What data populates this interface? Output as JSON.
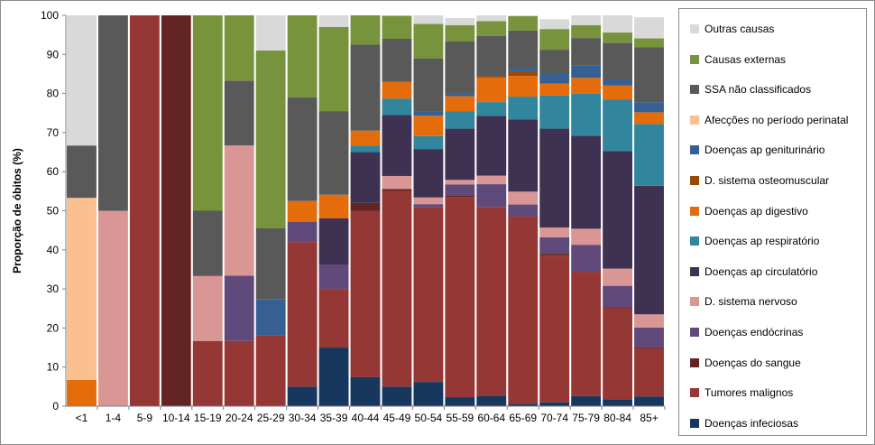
{
  "chart_data": {
    "type": "bar",
    "stacked": true,
    "ylabel": "Proporção de óbitos (%)",
    "ylim": [
      0,
      100
    ],
    "yticks": [
      0,
      10,
      20,
      30,
      40,
      50,
      60,
      70,
      80,
      90,
      100
    ],
    "categories": [
      "<1",
      "1-4",
      "5-9",
      "10-14",
      "15-19",
      "20-24",
      "25-29",
      "30-34",
      "35-39",
      "40-44",
      "45-49",
      "50-54",
      "55-59",
      "60-64",
      "65-69",
      "70-74",
      "75-79",
      "80-84",
      "85+"
    ],
    "series": [
      {
        "name": "Doenças infeciosas",
        "color": "#17375e",
        "values": [
          0,
          0,
          0,
          0,
          0,
          0,
          0,
          5,
          15,
          7.4,
          5,
          6.2,
          2.3,
          2.7,
          0.6,
          1,
          2.6,
          1.8,
          2.5
        ]
      },
      {
        "name": "Tumores malignos",
        "color": "#953735",
        "values": [
          0,
          0,
          100,
          0,
          16.7,
          16.7,
          18.2,
          37,
          15,
          42.6,
          50,
          44.8,
          51.2,
          48.3,
          48,
          37.5,
          31.8,
          23.4,
          12.3
        ]
      },
      {
        "name": "Doenças do sangue",
        "color": "#632523",
        "values": [
          0,
          0,
          0,
          100,
          0,
          0,
          0,
          0,
          0,
          2,
          0.6,
          0,
          0.4,
          0,
          0,
          0.5,
          0,
          0.2,
          0.3
        ]
      },
      {
        "name": "Doenças endócrinas",
        "color": "#604a7b",
        "values": [
          0,
          0,
          0,
          0,
          0,
          16.7,
          0,
          5.2,
          6.1,
          0,
          0,
          0.7,
          2.8,
          5.8,
          3,
          4.2,
          6.9,
          5.4,
          5
        ]
      },
      {
        "name": "D. sistema nervoso",
        "color": "#d99694",
        "values": [
          0,
          50,
          0,
          0,
          16.6,
          33.3,
          0,
          0,
          0,
          0,
          3.3,
          1.7,
          1.2,
          2.2,
          3.3,
          2.5,
          4.1,
          4.4,
          3.4
        ]
      },
      {
        "name": "Doenças ap circulatório",
        "color": "#3f3151",
        "values": [
          0,
          0,
          0,
          0,
          0,
          0,
          0,
          0,
          12,
          13,
          15.6,
          12.4,
          13.1,
          15.3,
          18.5,
          25.3,
          23.8,
          30.1,
          32.9
        ]
      },
      {
        "name": "Doenças ap respiratório",
        "color": "#31859c",
        "values": [
          0,
          0,
          0,
          0,
          0,
          0,
          0,
          0,
          0,
          1.7,
          4.2,
          3.3,
          4.5,
          3.5,
          5.8,
          8.5,
          10.8,
          13.2,
          15.8
        ]
      },
      {
        "name": "Doenças ap digestivo",
        "color": "#e46c0a",
        "values": [
          6.7,
          0,
          0,
          0,
          0,
          0,
          0,
          5.3,
          6,
          3.8,
          4.3,
          5.2,
          3.8,
          6.3,
          5.3,
          3,
          4,
          3.6,
          3
        ]
      },
      {
        "name": "D. sistema osteomuscular",
        "color": "#984807",
        "values": [
          0,
          0,
          0,
          0,
          0,
          0,
          0,
          0,
          0,
          0,
          0,
          0,
          0,
          0.3,
          1.2,
          0,
          0,
          0,
          0
        ]
      },
      {
        "name": "Doenças ap geniturinário",
        "color": "#366092",
        "values": [
          0,
          0,
          0,
          0,
          0,
          0,
          9.1,
          0,
          0,
          0,
          0,
          1.2,
          0.7,
          0,
          0.8,
          2.6,
          3.1,
          1.5,
          2.6
        ]
      },
      {
        "name": "Afecções no período perinatal",
        "color": "#fac090",
        "values": [
          46.6,
          0,
          0,
          0,
          0,
          0,
          0,
          0,
          0,
          0,
          0,
          0,
          0,
          0,
          0,
          0,
          0,
          0,
          0
        ]
      },
      {
        "name": "SSA não classificados",
        "color": "#595959",
        "values": [
          13.4,
          50,
          0,
          0,
          16.7,
          16.6,
          18.2,
          26.5,
          21.4,
          22,
          11,
          13.5,
          13.3,
          10.3,
          9.6,
          6.1,
          7.1,
          9.4,
          14
        ]
      },
      {
        "name": "Causas externas",
        "color": "#77933c",
        "values": [
          0,
          0,
          0,
          0,
          50,
          16.7,
          45.5,
          21,
          21.5,
          7.5,
          5.9,
          8.8,
          4.2,
          3.8,
          3.7,
          5.3,
          3.3,
          2.6,
          2.3
        ]
      },
      {
        "name": "Outras causas",
        "color": "#d9d9d9",
        "values": [
          33.3,
          0,
          0,
          0,
          0,
          0,
          9,
          0,
          3,
          0,
          0,
          2.2,
          1.8,
          1.5,
          0.2,
          2.5,
          2.5,
          4.4,
          5.4
        ]
      }
    ]
  }
}
